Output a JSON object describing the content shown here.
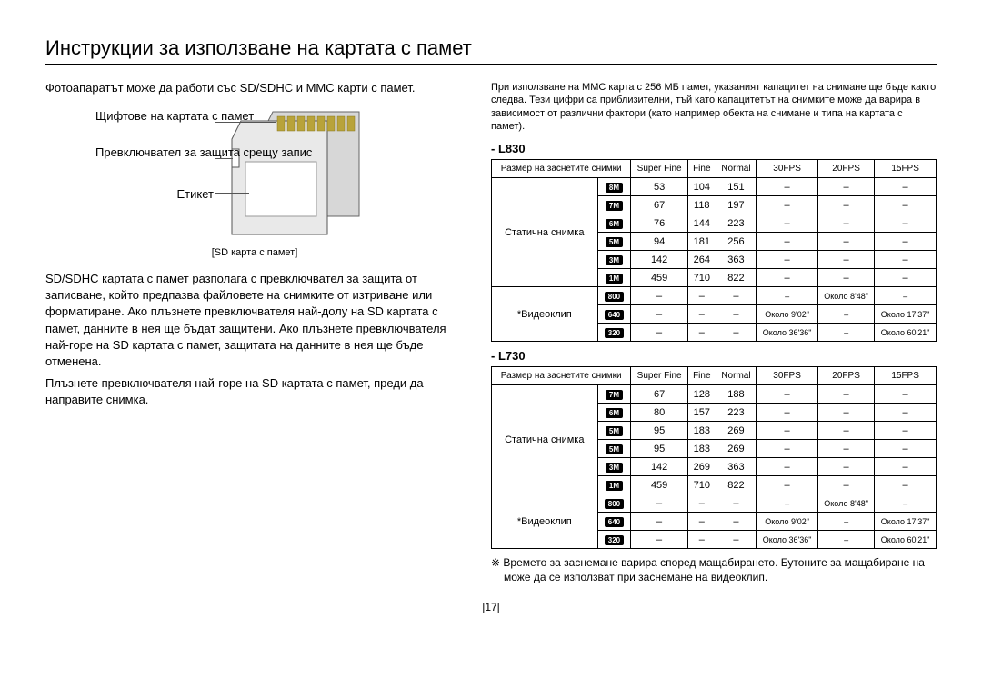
{
  "title": "Инструкции за използване на картата с памет",
  "leftIntro": "Фотоапаратът може да работи със SD/SDHC и MMC карти с памет.",
  "sdLabels": {
    "pins": "Щифтове на картата с памет",
    "switch": "Превключвател за защита срещу запис",
    "label": "Етикет"
  },
  "sdCaption": "[SD карта с памет]",
  "bodyParagraphs": [
    "SD/SDHC картата с памет разполага с превключвател за защита от записване, който предпазва файловете на снимките от изтриване или форматиране. Ако плъзнете превключвателя най-долу на SD картата с памет, данните в нея ще бъдат защитени. Ако плъзнете превключвателя най-горе на SD картата с памет, защитата на данните в нея ще бъде отменена.",
    "Плъзнете превключвателя най-горе на SD картата с памет, преди да направите снимка."
  ],
  "rightIntro": "При използване на MMC карта с 256 МБ памет, указаният капацитет на снимане ще бъде както следва. Тези цифри са приблизителни, тъй като капацитетът на снимките може да варира в зависимост от различни фактори (като например обекта на снимане и типа на картата с памет).",
  "tableHeader": {
    "size": "Размер на заснетите снимки",
    "sf": "Super Fine",
    "fine": "Fine",
    "normal": "Normal",
    "fps30": "30FPS",
    "fps20": "20FPS",
    "fps15": "15FPS"
  },
  "rowGroups": {
    "still": "Статична снимка",
    "video": "*Видеоклип"
  },
  "tableL830": {
    "title": "- L830",
    "stillRows": [
      {
        "icon": "8M",
        "sf": "53",
        "fine": "104",
        "normal": "151",
        "f30": "–",
        "f20": "–",
        "f15": "–"
      },
      {
        "icon": "7M",
        "sf": "67",
        "fine": "118",
        "normal": "197",
        "f30": "–",
        "f20": "–",
        "f15": "–"
      },
      {
        "icon": "6M",
        "sf": "76",
        "fine": "144",
        "normal": "223",
        "f30": "–",
        "f20": "–",
        "f15": "–"
      },
      {
        "icon": "5M",
        "sf": "94",
        "fine": "181",
        "normal": "256",
        "f30": "–",
        "f20": "–",
        "f15": "–"
      },
      {
        "icon": "3M",
        "sf": "142",
        "fine": "264",
        "normal": "363",
        "f30": "–",
        "f20": "–",
        "f15": "–"
      },
      {
        "icon": "1M",
        "sf": "459",
        "fine": "710",
        "normal": "822",
        "f30": "–",
        "f20": "–",
        "f15": "–"
      }
    ],
    "videoRows": [
      {
        "icon": "800",
        "sf": "–",
        "fine": "–",
        "normal": "–",
        "f30": "–",
        "f20": "Около 8'48\"",
        "f15": "–"
      },
      {
        "icon": "640",
        "sf": "–",
        "fine": "–",
        "normal": "–",
        "f30": "Около 9'02\"",
        "f20": "–",
        "f15": "Около 17'37\""
      },
      {
        "icon": "320",
        "sf": "–",
        "fine": "–",
        "normal": "–",
        "f30": "Около 36'36\"",
        "f20": "–",
        "f15": "Около 60'21\""
      }
    ]
  },
  "tableL730": {
    "title": "- L730",
    "stillRows": [
      {
        "icon": "7M",
        "sf": "67",
        "fine": "128",
        "normal": "188",
        "f30": "–",
        "f20": "–",
        "f15": "–"
      },
      {
        "icon": "6M",
        "sf": "80",
        "fine": "157",
        "normal": "223",
        "f30": "–",
        "f20": "–",
        "f15": "–"
      },
      {
        "icon": "5M",
        "sf": "95",
        "fine": "183",
        "normal": "269",
        "f30": "–",
        "f20": "–",
        "f15": "–"
      },
      {
        "icon": "5M",
        "sf": "95",
        "fine": "183",
        "normal": "269",
        "f30": "–",
        "f20": "–",
        "f15": "–"
      },
      {
        "icon": "3M",
        "sf": "142",
        "fine": "269",
        "normal": "363",
        "f30": "–",
        "f20": "–",
        "f15": "–"
      },
      {
        "icon": "1M",
        "sf": "459",
        "fine": "710",
        "normal": "822",
        "f30": "–",
        "f20": "–",
        "f15": "–"
      }
    ],
    "videoRows": [
      {
        "icon": "800",
        "sf": "–",
        "fine": "–",
        "normal": "–",
        "f30": "–",
        "f20": "Около 8'48\"",
        "f15": "–"
      },
      {
        "icon": "640",
        "sf": "–",
        "fine": "–",
        "normal": "–",
        "f30": "Около 9'02\"",
        "f20": "–",
        "f15": "Около 17'37\""
      },
      {
        "icon": "320",
        "sf": "–",
        "fine": "–",
        "normal": "–",
        "f30": "Около 36'36\"",
        "f20": "–",
        "f15": "Около 60'21\""
      }
    ]
  },
  "footnote": "※ Времето за заснемане варира според мащабирането. Бутоните за мащабиране на може да се използват при заснемане на видеоклип.",
  "pageNumber": "|17|"
}
